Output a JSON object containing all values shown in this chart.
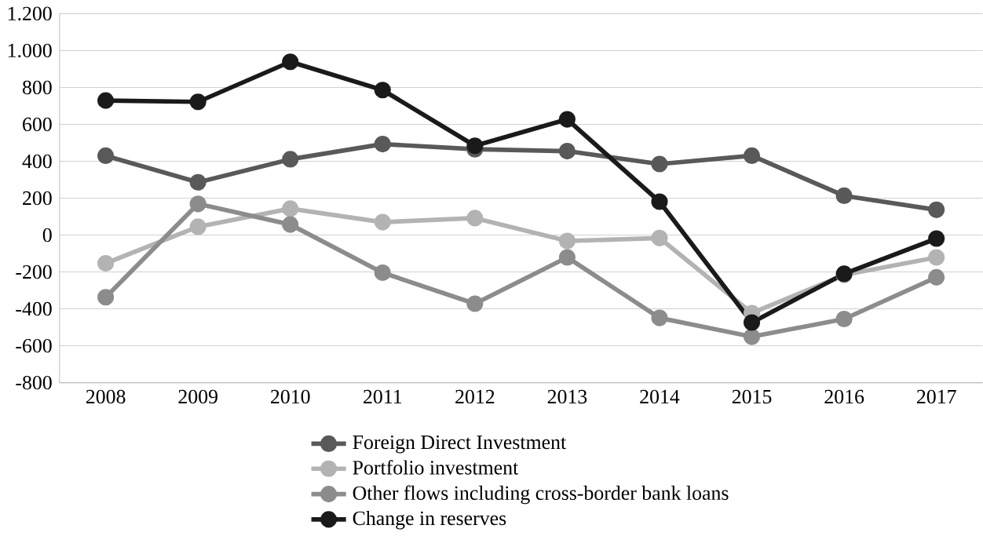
{
  "chart_data": {
    "type": "line",
    "categories": [
      "2008",
      "2009",
      "2010",
      "2011",
      "2012",
      "2013",
      "2014",
      "2015",
      "2016",
      "2017"
    ],
    "series": [
      {
        "name": "Foreign Direct Investment",
        "color": "#595959",
        "values": [
          430,
          286,
          411,
          493,
          465,
          455,
          385,
          430,
          213,
          137
        ]
      },
      {
        "name": "Portfolio investment",
        "color": "#b3b3b3",
        "values": [
          -153,
          45,
          143,
          70,
          92,
          -32,
          -16,
          -423,
          -216,
          -121
        ]
      },
      {
        "name": "Other flows including cross-border bank loans",
        "color": "#8c8c8c",
        "values": [
          -337,
          169,
          57,
          -204,
          -372,
          -121,
          -449,
          -551,
          -455,
          -229
        ]
      },
      {
        "name": "Change in reserves",
        "color": "#1a1a1a",
        "values": [
          729,
          722,
          939,
          786,
          484,
          627,
          181,
          -474,
          -210,
          -19
        ]
      }
    ],
    "ylim": [
      -800,
      1200
    ],
    "yticks": [
      {
        "value": -800,
        "label": "-800"
      },
      {
        "value": -600,
        "label": "-600"
      },
      {
        "value": -400,
        "label": "-400"
      },
      {
        "value": -200,
        "label": "-200"
      },
      {
        "value": 0,
        "label": "0"
      },
      {
        "value": 200,
        "label": "200"
      },
      {
        "value": 400,
        "label": "400"
      },
      {
        "value": 600,
        "label": "600"
      },
      {
        "value": 800,
        "label": "800"
      },
      {
        "value": 1000,
        "label": "1.000"
      },
      {
        "value": 1200,
        "label": "1.200"
      }
    ],
    "grid": "y",
    "legend": "bottom",
    "marker": "circle",
    "line_style": "solid"
  }
}
